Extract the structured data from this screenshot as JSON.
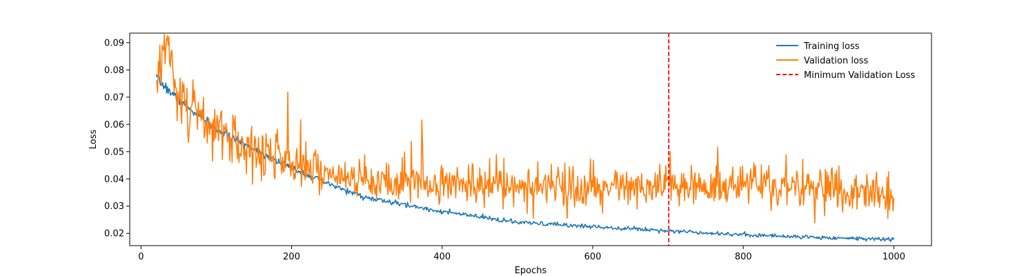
{
  "chart_data": {
    "type": "line",
    "title": "",
    "xlabel": "Epochs",
    "ylabel": "Loss",
    "xlim": [
      -15,
      1050
    ],
    "ylim": [
      0.0155,
      0.0935
    ],
    "xticks": [
      0,
      200,
      400,
      600,
      800,
      1000
    ],
    "yticks": [
      0.02,
      0.03,
      0.04,
      0.05,
      0.06,
      0.07,
      0.08,
      0.09
    ],
    "x_start": 20,
    "x_end": 1000,
    "grid": false,
    "legend_position": "top-right",
    "series": [
      {
        "name": "Training loss",
        "color": "#1f77b4",
        "style": "solid",
        "model": {
          "floor": 0.0155,
          "amp": 0.0665,
          "tau": 230,
          "noise": 0.0009,
          "seed": 7
        },
        "anchors": [
          [
            20,
            0.077
          ],
          [
            50,
            0.069
          ],
          [
            100,
            0.058
          ],
          [
            150,
            0.051
          ],
          [
            200,
            0.044
          ],
          [
            250,
            0.038
          ],
          [
            300,
            0.033
          ],
          [
            400,
            0.028
          ],
          [
            500,
            0.024
          ],
          [
            600,
            0.0225
          ],
          [
            700,
            0.021
          ],
          [
            800,
            0.0195
          ],
          [
            900,
            0.0185
          ],
          [
            1000,
            0.0178
          ]
        ]
      },
      {
        "name": "Validation loss",
        "color": "#ff7f0e",
        "style": "solid",
        "model": {
          "floor": 0.0325,
          "amp": 0.0455,
          "tau": 150,
          "noise": 0.0048,
          "seed": 13
        },
        "anchors": [
          [
            20,
            0.076
          ],
          [
            34,
            0.091
          ],
          [
            50,
            0.068
          ],
          [
            100,
            0.058
          ],
          [
            150,
            0.05
          ],
          [
            200,
            0.046
          ],
          [
            250,
            0.042
          ],
          [
            300,
            0.04
          ],
          [
            400,
            0.038
          ],
          [
            500,
            0.038
          ],
          [
            600,
            0.037
          ],
          [
            700,
            0.037
          ],
          [
            800,
            0.037
          ],
          [
            900,
            0.037
          ],
          [
            1000,
            0.033
          ]
        ]
      }
    ],
    "vline": {
      "name": "Minimum Validation Loss",
      "x": 701,
      "color": "#ff0000",
      "style": "dashed"
    }
  }
}
